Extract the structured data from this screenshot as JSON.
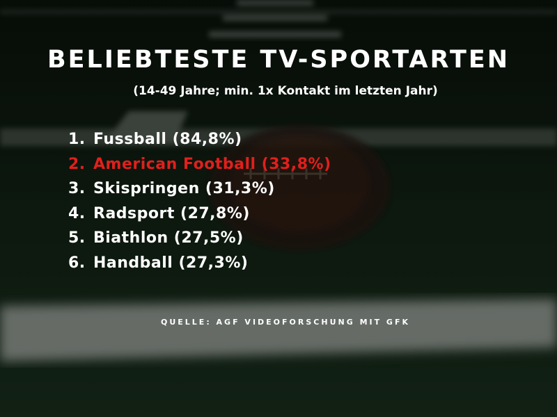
{
  "header": {
    "title": "BELIEBTESTE TV-SPORTARTEN",
    "subtitle": "(14-49 Jahre; min. 1x Kontakt im letzten Jahr)"
  },
  "list": [
    {
      "rank": "1.",
      "label": "Fussball (84,8%)"
    },
    {
      "rank": "2.",
      "label": "American Football (33,8%)"
    },
    {
      "rank": "3.",
      "label": "Skispringen (31,3%)"
    },
    {
      "rank": "4.",
      "label": "Radsport (27,8%)"
    },
    {
      "rank": "5.",
      "label": "Biathlon (27,5%)"
    },
    {
      "rank": "6.",
      "label": "Handball (27,3%)"
    }
  ],
  "footer": {
    "source": "QUELLE: AGF VIDEOFORSCHUNG MIT GFK"
  }
}
